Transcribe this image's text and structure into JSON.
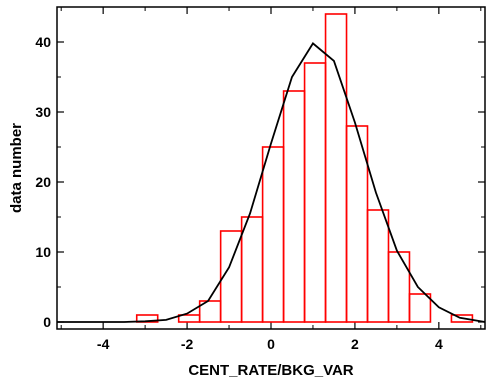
{
  "chart_data": {
    "type": "histogram",
    "xlabel": "CENT_RATE/BKG_VAR",
    "ylabel": "data number",
    "xlim": [
      -5.1,
      5.1
    ],
    "ylim": [
      -1,
      45
    ],
    "x_ticks": [
      -4,
      -2,
      0,
      2,
      4
    ],
    "y_ticks": [
      0,
      10,
      20,
      30,
      40
    ],
    "grid": false,
    "histogram": {
      "color": "#ff0000",
      "bin_edges": [
        -5.1,
        -3.2,
        -2.7,
        -2.2,
        -1.7,
        -1.2,
        -0.7,
        -0.2,
        0.3,
        0.8,
        1.3,
        1.8,
        2.3,
        2.8,
        3.3,
        3.8,
        4.3,
        4.8,
        5.1
      ],
      "counts": [
        0,
        1,
        0,
        1,
        3,
        13,
        15,
        25,
        33,
        37,
        44,
        28,
        16,
        10,
        4,
        0,
        1,
        0
      ]
    },
    "fit_curve": {
      "color": "#000000",
      "x": [
        -5.1,
        -4.5,
        -4.0,
        -3.5,
        -3.0,
        -2.5,
        -2.0,
        -1.5,
        -1.0,
        -0.5,
        0.0,
        0.5,
        1.0,
        1.5,
        2.0,
        2.5,
        3.0,
        3.5,
        4.0,
        4.5,
        5.1
      ],
      "y": [
        0,
        0,
        0,
        0,
        0.1,
        0.3,
        1.2,
        3.0,
        7.8,
        15.5,
        25.5,
        35.0,
        39.8,
        37.3,
        28.5,
        18.5,
        10.2,
        5.0,
        2.1,
        0.6,
        0
      ]
    }
  }
}
